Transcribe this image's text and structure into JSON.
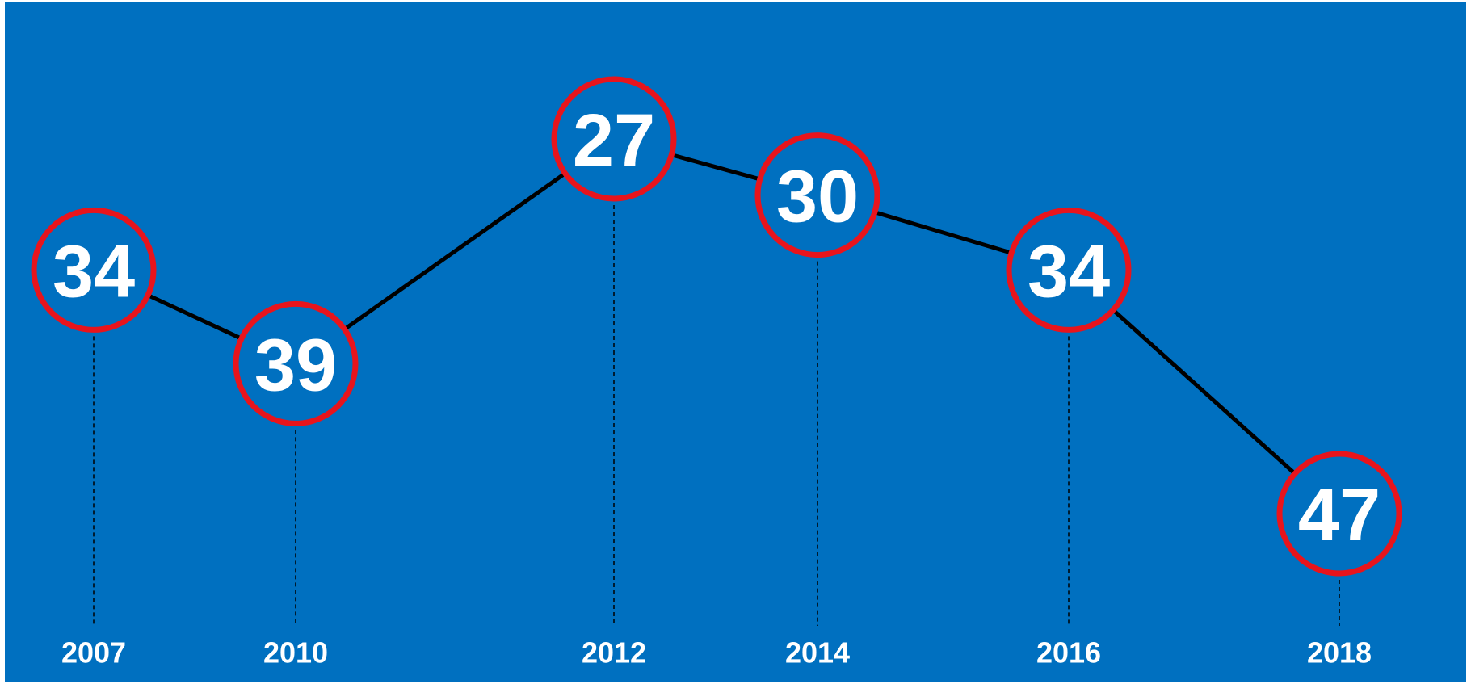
{
  "chart_data": {
    "type": "line",
    "categories": [
      "2007",
      "2010",
      "2012",
      "2014",
      "2016",
      "2018"
    ],
    "values": [
      34,
      39,
      27,
      30,
      34,
      47
    ],
    "color": "#000000",
    "marker_color": "#e8141c",
    "background": "#0070c0",
    "yinvert": true
  }
}
